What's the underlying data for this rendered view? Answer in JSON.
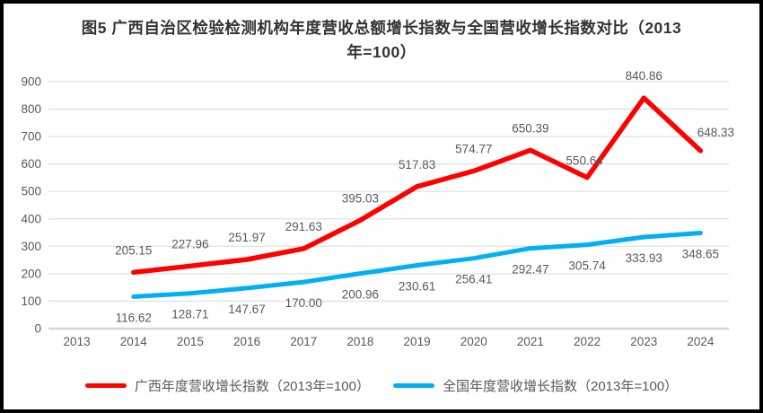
{
  "title": "图5  广西自治区检验检测机构年度营收总额增长指数与全国营收增长指数对比（2013年=100）",
  "chart_data": {
    "type": "line",
    "title": "图5  广西自治区检验检测机构年度营收总额增长指数与全国营收增长指数对比（2013年=100）",
    "categories": [
      "2013",
      "2014",
      "2015",
      "2016",
      "2017",
      "2018",
      "2019",
      "2020",
      "2021",
      "2022",
      "2023",
      "2024"
    ],
    "series": [
      {
        "name": "广西年度营收增长指数（2013年=100）",
        "color": "#ff0000",
        "label_position": "above",
        "values": [
          null,
          205.15,
          227.96,
          251.97,
          291.63,
          395.03,
          517.83,
          574.77,
          650.39,
          550.64,
          840.86,
          648.33
        ]
      },
      {
        "name": "全国年度营收增长指数（2013年=100）",
        "color": "#00b0f0",
        "label_position": "below",
        "values": [
          null,
          116.62,
          128.71,
          147.67,
          170.0,
          200.96,
          230.61,
          256.41,
          292.47,
          305.74,
          333.93,
          348.65
        ]
      }
    ],
    "xlabel": "",
    "ylabel": "",
    "ylim": [
      0,
      900
    ],
    "ytick_step": 100,
    "yticks": [
      "0",
      "100",
      "200",
      "300",
      "400",
      "500",
      "600",
      "700",
      "800",
      "900"
    ],
    "grid": true,
    "legend_position": "bottom",
    "data_labels_decimals": 2
  },
  "colors": {
    "frame_border": "#000000",
    "gridline": "#e2e2e2",
    "zero_axis": "#d6d6d6",
    "axis_text": "#595959",
    "data_label_text": "#595959",
    "title_text": "#333333"
  }
}
